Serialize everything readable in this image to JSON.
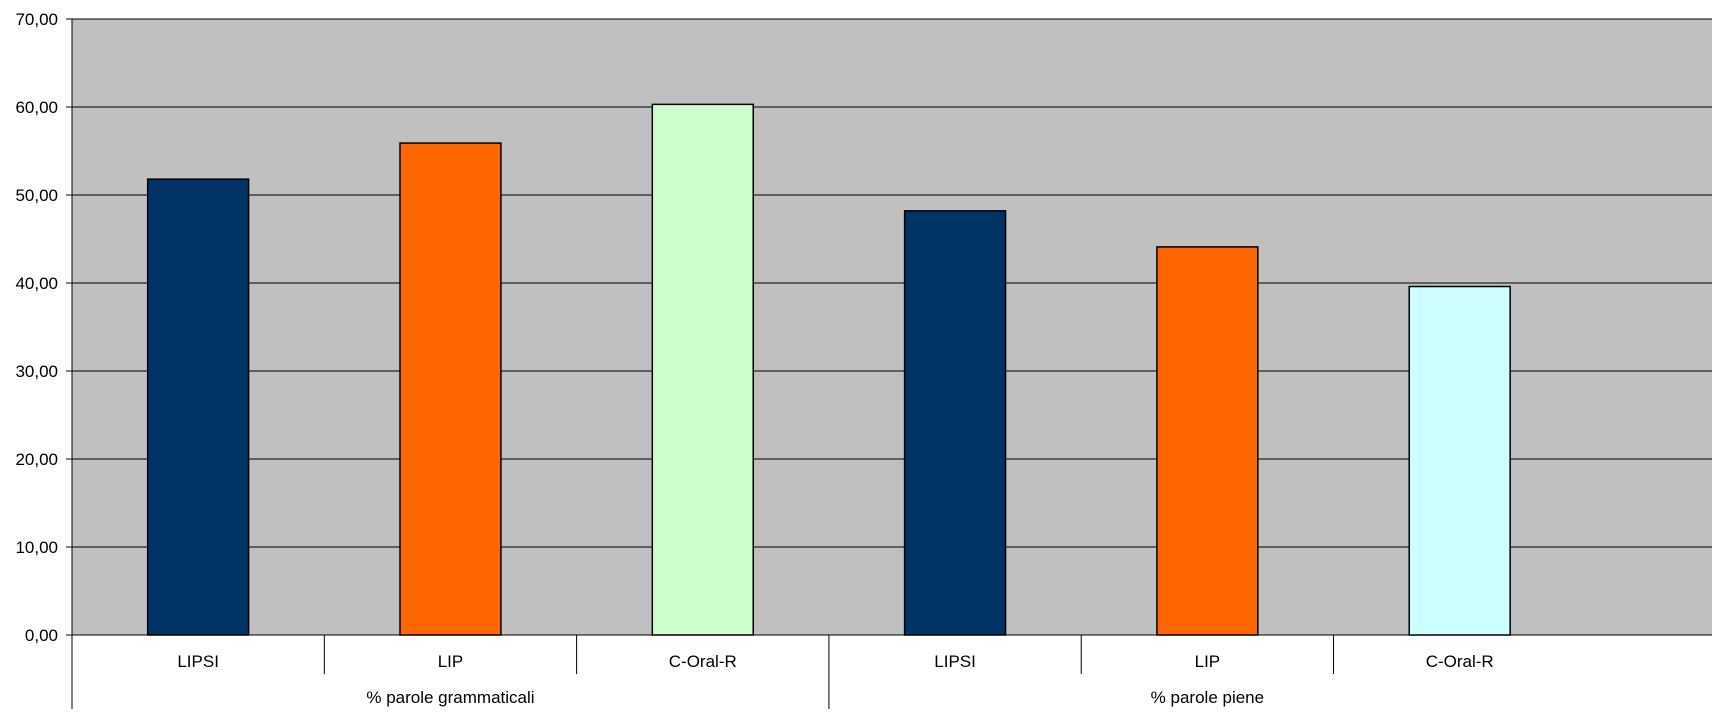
{
  "chart_data": {
    "type": "bar",
    "title": "",
    "xlabel": "",
    "ylabel": "",
    "ylim": [
      0,
      70
    ],
    "ytick_step": 10,
    "ytick_labels": [
      "0,00",
      "10,00",
      "20,00",
      "30,00",
      "40,00",
      "50,00",
      "60,00",
      "70,00"
    ],
    "grid": true,
    "legend": "none",
    "plot_background": "#c0c0c0",
    "groups": [
      {
        "label": "% parole grammaticali",
        "categories": [
          "LIPSI",
          "LIP",
          "C-Oral-R"
        ]
      },
      {
        "label": "% parole piene",
        "categories": [
          "LIPSI",
          "LIP",
          "C-Oral-R"
        ]
      }
    ],
    "bars": [
      {
        "group": 0,
        "category": "LIPSI",
        "value": 51.8,
        "color": "#003366"
      },
      {
        "group": 0,
        "category": "LIP",
        "value": 55.9,
        "color": "#ff6600"
      },
      {
        "group": 0,
        "category": "C-Oral-R",
        "value": 60.3,
        "color": "#ccffcc"
      },
      {
        "group": 1,
        "category": "LIPSI",
        "value": 48.2,
        "color": "#003366"
      },
      {
        "group": 1,
        "category": "LIP",
        "value": 44.1,
        "color": "#ff6600"
      },
      {
        "group": 1,
        "category": "C-Oral-R",
        "value": 39.6,
        "color": "#ccffff"
      }
    ]
  }
}
